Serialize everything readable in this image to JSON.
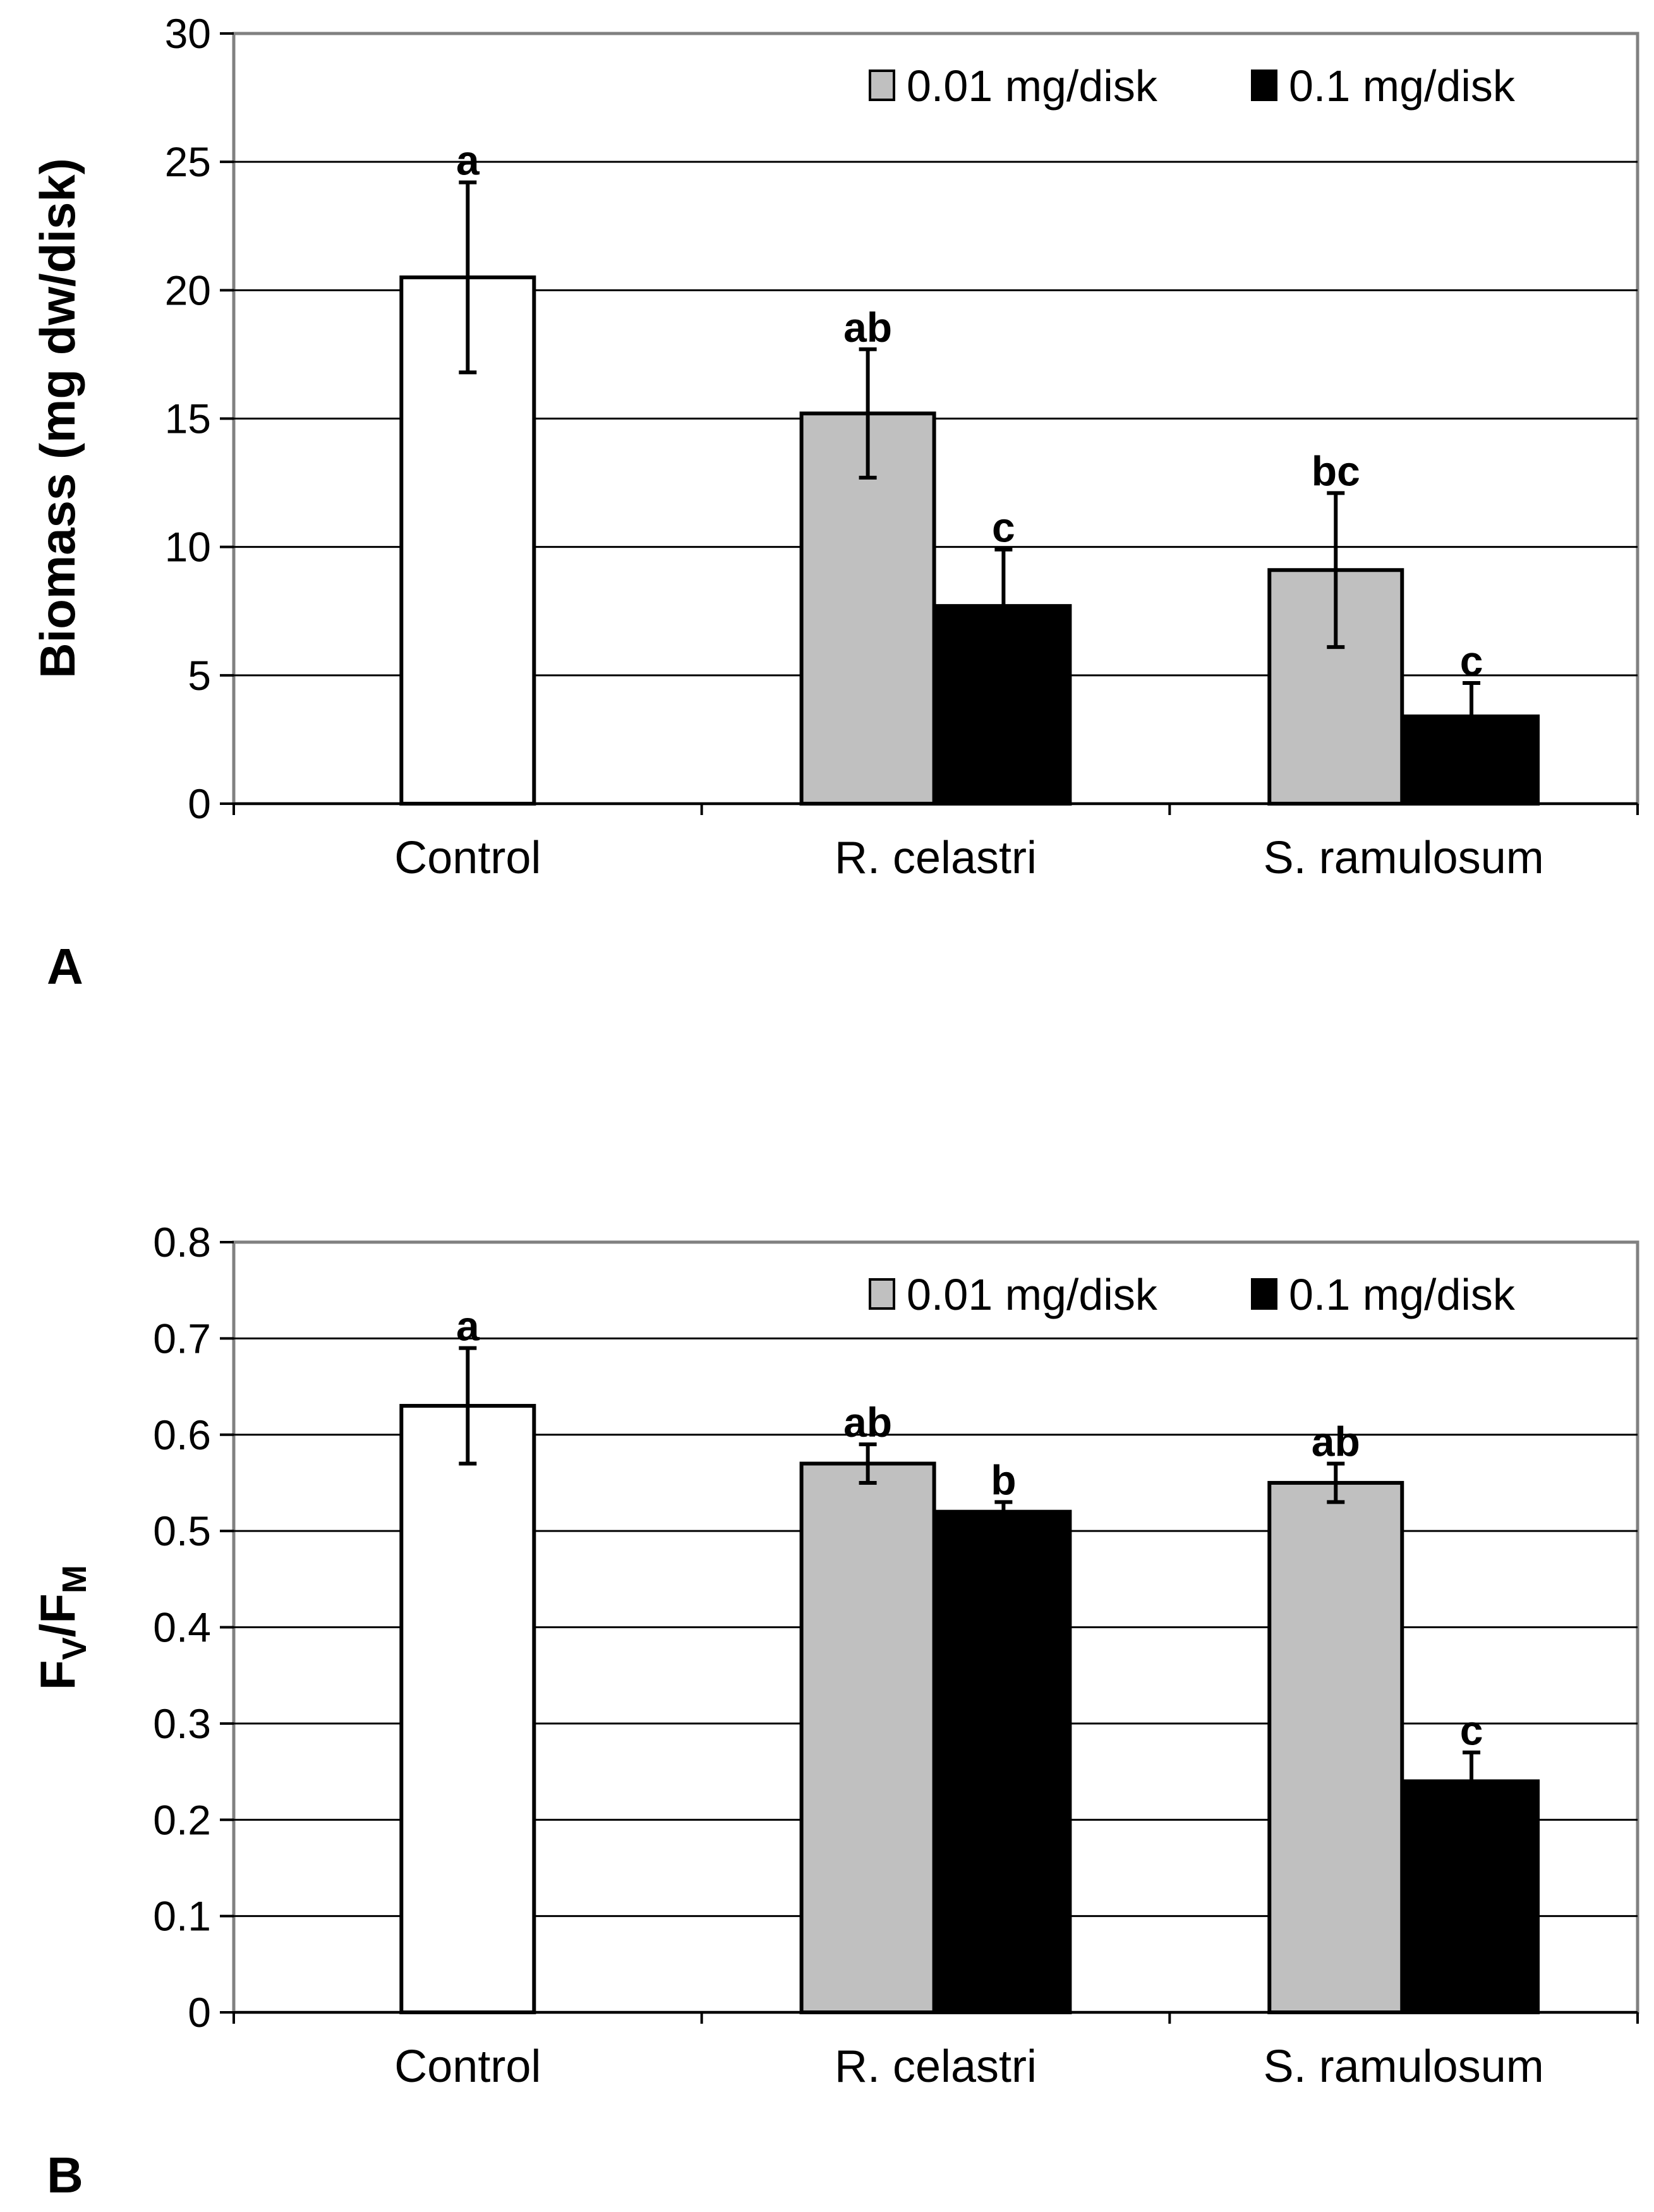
{
  "colors": {
    "control": "#ffffff",
    "low_dose": "#c0c0c0",
    "high_dose": "#000000",
    "gridline": "#000000",
    "axis": "#808080"
  },
  "chart_data": [
    {
      "type": "bar",
      "panel": "A",
      "ylabel": "Biomass (mg dw/disk)",
      "ylim": [
        0,
        30
      ],
      "yticks": [
        "0",
        "5",
        "10",
        "15",
        "20",
        "25",
        "30"
      ],
      "grid": true,
      "legend": {
        "placement": "top-right",
        "entries": [
          "0.01 mg/disk",
          "0.1 mg/disk"
        ]
      },
      "categories": [
        "Control",
        "R. celastri",
        "S. ramulosum"
      ],
      "series": [
        {
          "name": "Control",
          "values": [
            20.5,
            null,
            null
          ],
          "errors": [
            3.7,
            null,
            null
          ],
          "labels": [
            "a",
            null,
            null
          ]
        },
        {
          "name": "0.01 mg/disk",
          "values": [
            null,
            15.2,
            9.1
          ],
          "errors": [
            null,
            2.5,
            3.0
          ],
          "labels": [
            null,
            "ab",
            "bc"
          ]
        },
        {
          "name": "0.1 mg/disk",
          "values": [
            null,
            7.7,
            3.4
          ],
          "errors": [
            null,
            2.2,
            1.3
          ],
          "labels": [
            null,
            "c",
            "c"
          ]
        }
      ]
    },
    {
      "type": "bar",
      "panel": "B",
      "ylabel": "FV/FM",
      "ylabel_main": "F",
      "ylabel_sub1": "V",
      "ylabel_mid": "/F",
      "ylabel_sub2": "M",
      "ylim": [
        0,
        0.8
      ],
      "yticks": [
        "0",
        "0.1",
        "0.2",
        "0.3",
        "0.4",
        "0.5",
        "0.6",
        "0.7",
        "0.8"
      ],
      "grid": true,
      "legend": {
        "placement": "top-right",
        "entries": [
          "0.01 mg/disk",
          "0.1 mg/disk"
        ]
      },
      "categories": [
        "Control",
        "R. celastri",
        "S. ramulosum"
      ],
      "series": [
        {
          "name": "Control",
          "values": [
            0.63,
            null,
            null
          ],
          "errors": [
            0.06,
            null,
            null
          ],
          "labels": [
            "a",
            null,
            null
          ]
        },
        {
          "name": "0.01 mg/disk",
          "values": [
            null,
            0.57,
            0.55
          ],
          "errors": [
            null,
            0.02,
            0.02
          ],
          "labels": [
            null,
            "ab",
            "ab"
          ]
        },
        {
          "name": "0.1 mg/disk",
          "values": [
            null,
            0.52,
            0.24
          ],
          "errors": [
            null,
            0.01,
            0.03
          ],
          "labels": [
            null,
            "b",
            "c"
          ]
        }
      ]
    }
  ]
}
